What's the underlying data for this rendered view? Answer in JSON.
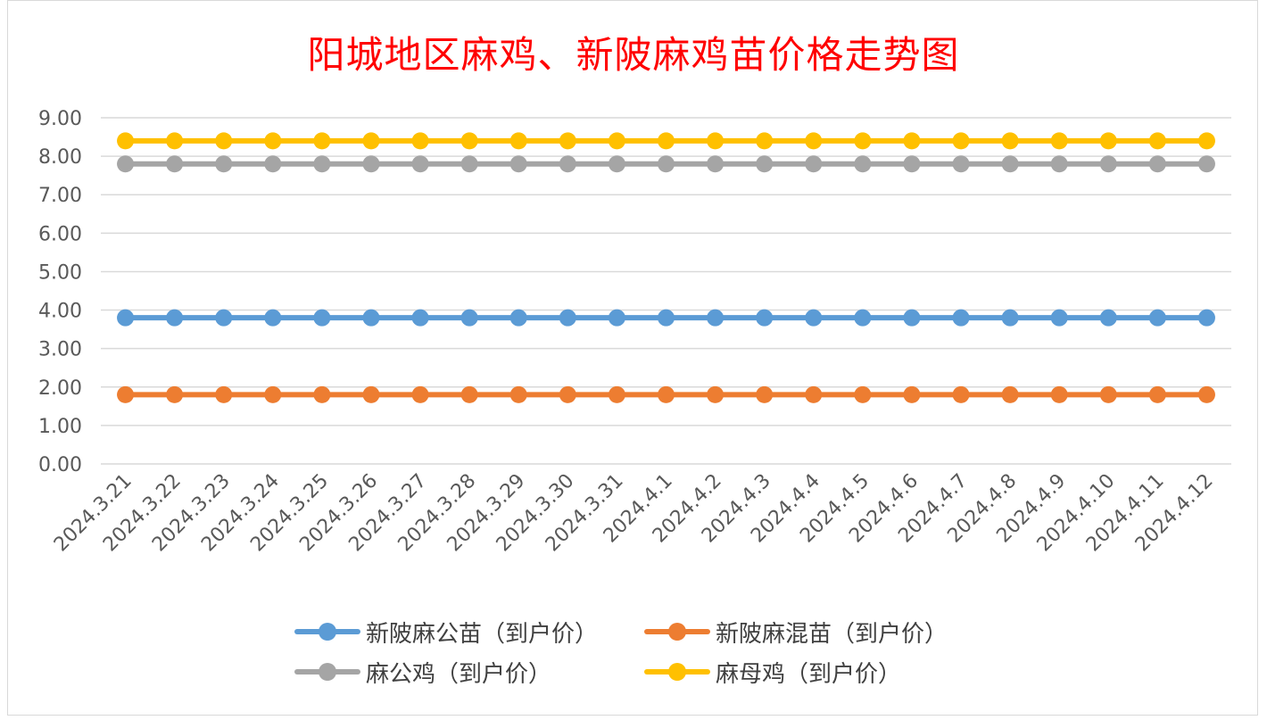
{
  "chart_data": {
    "type": "line",
    "title": "阳城地区麻鸡、新陂麻鸡苗价格走势图",
    "categories": [
      "2024.3.21",
      "2024.3.22",
      "2024.3.23",
      "2024.3.24",
      "2024.3.25",
      "2024.3.26",
      "2024.3.27",
      "2024.3.28",
      "2024.3.29",
      "2024.3.30",
      "2024.3.31",
      "2024.4.1",
      "2024.4.2",
      "2024.4.3",
      "2024.4.4",
      "2024.4.5",
      "2024.4.6",
      "2024.4.7",
      "2024.4.8",
      "2024.4.9",
      "2024.4.10",
      "2024.4.11",
      "2024.4.12"
    ],
    "y_ticks": [
      "0.00",
      "1.00",
      "2.00",
      "3.00",
      "4.00",
      "5.00",
      "6.00",
      "7.00",
      "8.00",
      "9.00"
    ],
    "ylim": [
      0,
      9
    ],
    "grid": true,
    "legend_position": "bottom",
    "series": [
      {
        "name": "新陂麻公苗（到户价）",
        "color": "#5b9bd5",
        "values": [
          3.8,
          3.8,
          3.8,
          3.8,
          3.8,
          3.8,
          3.8,
          3.8,
          3.8,
          3.8,
          3.8,
          3.8,
          3.8,
          3.8,
          3.8,
          3.8,
          3.8,
          3.8,
          3.8,
          3.8,
          3.8,
          3.8,
          3.8
        ]
      },
      {
        "name": "新陂麻混苗（到户价）",
        "color": "#ed7d31",
        "values": [
          1.8,
          1.8,
          1.8,
          1.8,
          1.8,
          1.8,
          1.8,
          1.8,
          1.8,
          1.8,
          1.8,
          1.8,
          1.8,
          1.8,
          1.8,
          1.8,
          1.8,
          1.8,
          1.8,
          1.8,
          1.8,
          1.8,
          1.8
        ]
      },
      {
        "name": "麻公鸡（到户价）",
        "color": "#a5a5a5",
        "values": [
          7.8,
          7.8,
          7.8,
          7.8,
          7.8,
          7.8,
          7.8,
          7.8,
          7.8,
          7.8,
          7.8,
          7.8,
          7.8,
          7.8,
          7.8,
          7.8,
          7.8,
          7.8,
          7.8,
          7.8,
          7.8,
          7.8,
          7.8
        ]
      },
      {
        "name": "麻母鸡（到户价）",
        "color": "#ffc000",
        "values": [
          8.4,
          8.4,
          8.4,
          8.4,
          8.4,
          8.4,
          8.4,
          8.4,
          8.4,
          8.4,
          8.4,
          8.4,
          8.4,
          8.4,
          8.4,
          8.4,
          8.4,
          8.4,
          8.4,
          8.4,
          8.4,
          8.4,
          8.4
        ]
      }
    ]
  }
}
